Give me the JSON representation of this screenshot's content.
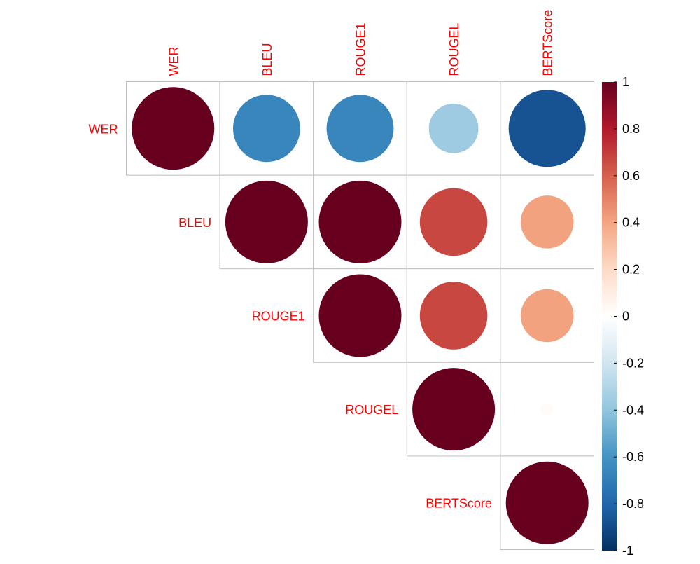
{
  "chart_data": {
    "type": "heatmap",
    "style": "correlation-circles-upper-triangle",
    "variables": [
      "WER",
      "BLEU",
      "ROUGE1",
      "ROUGEL",
      "BERTScore"
    ],
    "matrix": [
      [
        1.0,
        -0.66,
        -0.66,
        -0.36,
        -0.87
      ],
      [
        -0.66,
        1.0,
        1.0,
        0.67,
        0.41
      ],
      [
        -0.66,
        1.0,
        1.0,
        0.67,
        0.41
      ],
      [
        -0.36,
        0.67,
        0.67,
        1.0,
        0.02
      ],
      [
        -0.87,
        0.41,
        0.41,
        0.02,
        1.0
      ]
    ],
    "colorbar": {
      "range": [
        -1,
        1
      ],
      "ticks": [
        "1",
        "0.8",
        "0.6",
        "0.4",
        "0.2",
        "0",
        "-0.2",
        "-0.4",
        "-0.6",
        "-0.8",
        "-1"
      ],
      "palette": [
        "#67001F",
        "#B2182B",
        "#D6604D",
        "#F4A582",
        "#FDDBC7",
        "#FFFFFF",
        "#D1E5F0",
        "#92C5DE",
        "#4393C3",
        "#2166AC",
        "#053061"
      ]
    },
    "label_color": "#FF0000",
    "grid_color": "#BEBEBE"
  }
}
